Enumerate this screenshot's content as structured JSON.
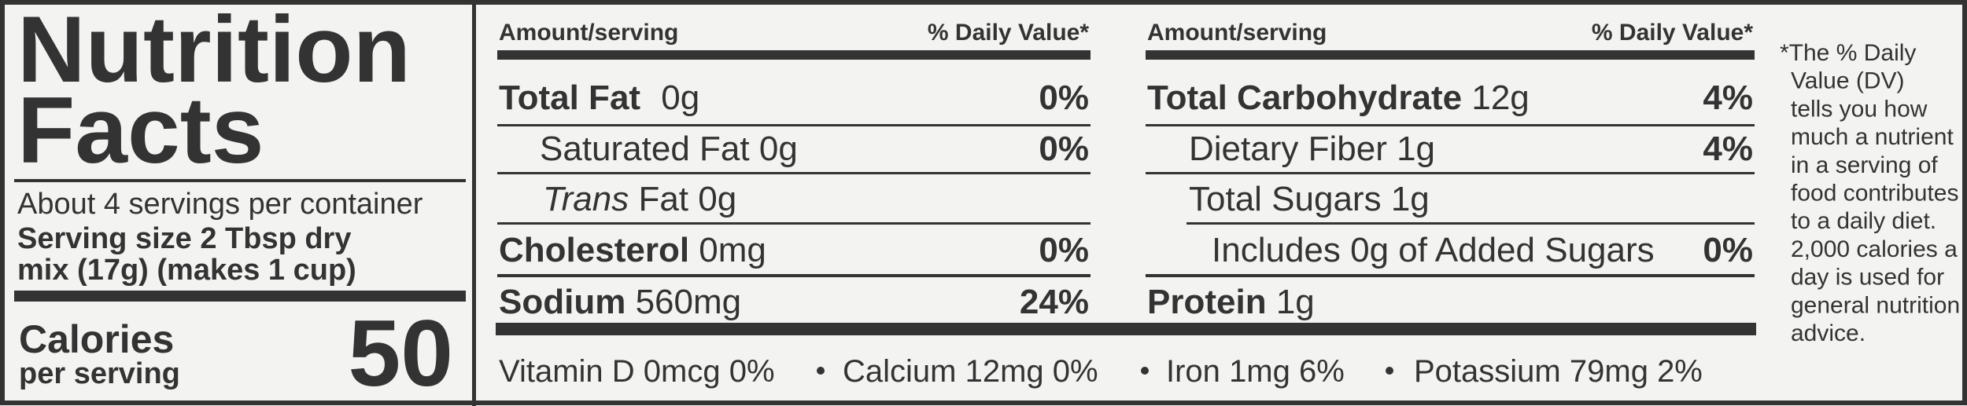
{
  "title": [
    "Nutrition",
    "Facts"
  ],
  "servings": "About 4 servings per container",
  "serving_size": [
    "Serving size 2 Tbsp dry",
    "mix (17g) (makes 1 cup)"
  ],
  "calories": {
    "label": "Calories",
    "sublabel": "per serving",
    "value": 50
  },
  "tables": [
    {
      "header": {
        "amount": "Amount/serving",
        "dv": "% Daily Value*"
      },
      "rows": [
        {
          "name": "Total Fat",
          "amount": "0g",
          "dv": "0%"
        },
        {
          "name": "Saturated Fat",
          "amount": "0g",
          "dv": "0%"
        },
        {
          "name_italic": "Trans",
          "name": "Fat",
          "amount": "0g"
        },
        {
          "name": "Cholesterol",
          "amount": "0mg",
          "dv": "0%"
        },
        {
          "name": "Sodium",
          "amount": "560mg",
          "dv": "24%"
        }
      ]
    },
    {
      "header": {
        "amount": "Amount/serving",
        "dv": "% Daily Value*"
      },
      "rows": [
        {
          "name": "Total Carbohydrate",
          "amount": "12g",
          "dv": "4%"
        },
        {
          "name": "Dietary Fiber",
          "amount": "1g",
          "dv": "4%"
        },
        {
          "name": "Total Sugars",
          "amount": "1g"
        },
        {
          "name": "Includes 0g of Added Sugars",
          "dv": "0%"
        },
        {
          "name": "Protein",
          "amount": "1g"
        }
      ]
    }
  ],
  "vitamins": [
    {
      "name": "Vitamin D",
      "amount": "0mcg",
      "dv": "0%"
    },
    {
      "name": "Calcium",
      "amount": "12mg",
      "dv": "0%"
    },
    {
      "name": "Iron",
      "amount": "1mg",
      "dv": "6%"
    },
    {
      "name": "Potassium",
      "amount": "79mg",
      "dv": "2%"
    }
  ],
  "footnote": [
    "*The % Daily",
    "Value (DV)",
    "tells you how",
    "much a nutrient",
    "in a serving of",
    "food contributes",
    "to a daily diet.",
    "2,000 calories a",
    "day is used for",
    "general nutrition",
    "advice."
  ]
}
